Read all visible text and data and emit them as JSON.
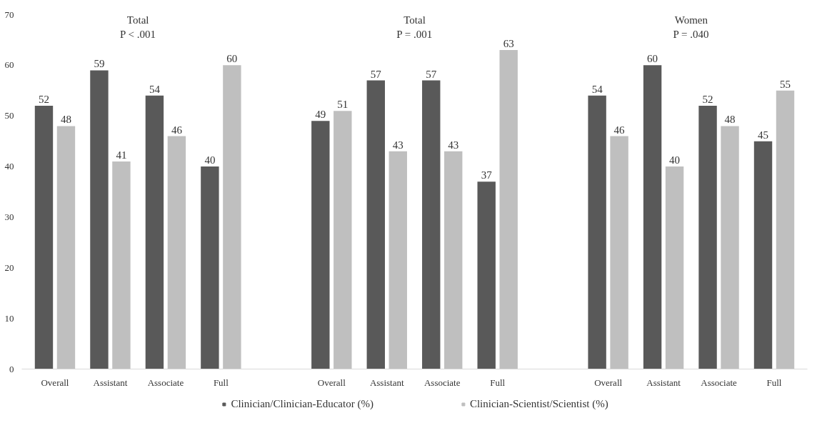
{
  "chart_data": {
    "type": "bar",
    "categories": [
      "Overall",
      "Assistant",
      "Associate",
      "Full",
      null,
      "Overall",
      "Assistant",
      "Associate",
      "Full",
      null,
      "Overall",
      "Assistant",
      "Associate",
      "Full"
    ],
    "series": [
      {
        "name": "Clinician/Clinician-Educator (%)",
        "color": "#595959",
        "values": [
          52,
          59,
          54,
          40,
          null,
          49,
          57,
          57,
          37,
          null,
          54,
          60,
          52,
          45
        ]
      },
      {
        "name": "Clinician-Scientist/Scientist (%)",
        "color": "#bfbfbf",
        "values": [
          48,
          41,
          46,
          60,
          null,
          51,
          43,
          43,
          63,
          null,
          46,
          40,
          48,
          55
        ]
      }
    ],
    "ylim": [
      0,
      70
    ],
    "yticks": [
      0,
      10,
      20,
      30,
      40,
      50,
      60,
      70
    ],
    "grid": false,
    "legend": "bottom",
    "data_labels": true,
    "annotations": [
      "Total\nP < .001",
      "Total\nP = .001",
      "Women\nP = .040"
    ]
  }
}
